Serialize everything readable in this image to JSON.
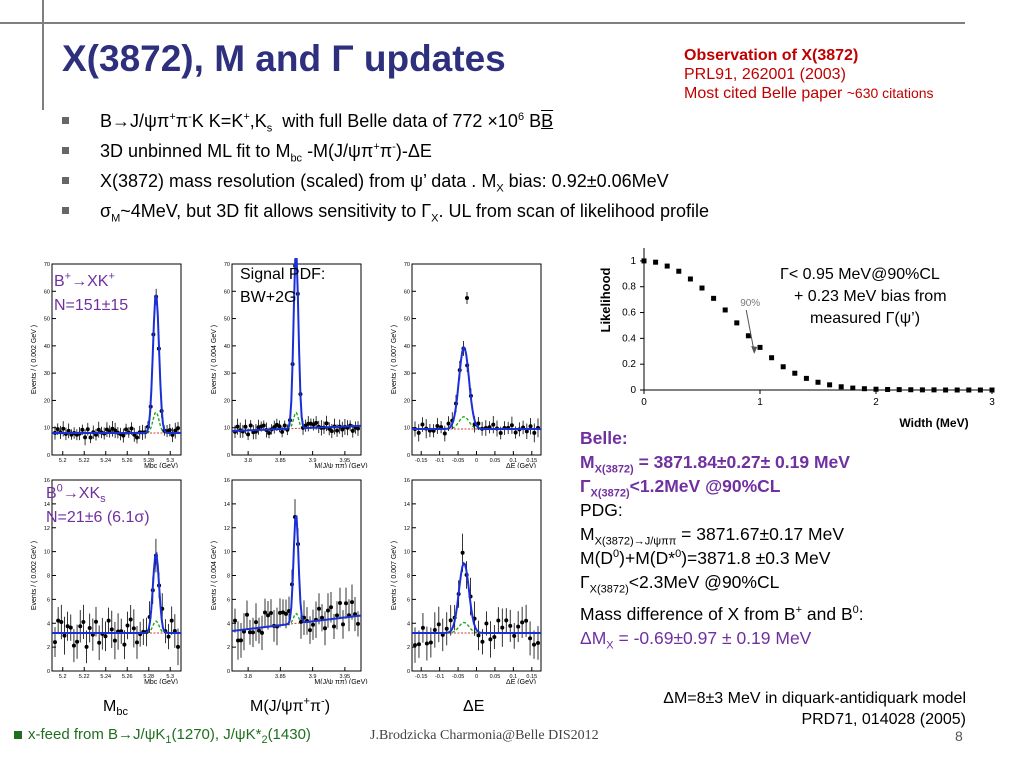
{
  "title": "X(3872), M and Γ updates",
  "observation": {
    "heading": "Observation of X(3872)",
    "ref": "PRL91, 262001 (2003)",
    "cited_main": "Most cited Belle paper ",
    "cited_small": "~630 citations"
  },
  "bullets": {
    "b1": {
      "a": "B→J/ψπ",
      "b": "+",
      "c": "π",
      "d": "-",
      "e": "K  K=K",
      "f": "+",
      "g": ",K",
      "h": "s",
      "i": "  with full Belle data of 772 ×10",
      "j": "6",
      "k": " B",
      "l": "B"
    },
    "b2": {
      "a": "3D unbinned ML fit to M",
      "b": "bc",
      "c": " -M(J/ψπ",
      "d": "+",
      "e": "π",
      "f": "-",
      "g": ")-ΔE"
    },
    "b3": {
      "a": "X(3872) mass resolution (scaled) from ψ’ data . M",
      "b": "X",
      "c": " bias: 0.92±0.06MeV"
    },
    "b4": {
      "a": "σ",
      "b": "M",
      "c": "~4MeV, but 3D fit allows sensitivity to Γ",
      "d": "X",
      "e": ". UL from scan of likelihood profile"
    }
  },
  "panels": {
    "ylab_002": "Events / ( 0.002 GeV )",
    "ylab_004": "Events / ( 0.004 GeV )",
    "ylab_007": "Events / ( 0.007 GeV )",
    "xlab_mbc": "Mbc (GeV)",
    "xlab_mjpp": "M(J/ψ ππ) (GeV)",
    "xlab_de": "ΔE (GeV)",
    "ticks_mbc": [
      "5.2",
      "5.22",
      "5.24",
      "5.26",
      "5.28",
      "5.3"
    ],
    "ticks_mj_top": [
      "3.8",
      "3.85",
      "3.9",
      "3.95"
    ],
    "ticks_mj_bot": [
      "3.8",
      "3.85",
      "3.9",
      "3.95"
    ],
    "ticks_de": [
      "-0.15",
      "-0.1",
      "-0.05",
      "0",
      "0.05",
      "0.1",
      "0.15"
    ],
    "yticks_top": [
      "0",
      "10",
      "20",
      "30",
      "40",
      "50",
      "60",
      "70"
    ],
    "yticks_bot": [
      "0",
      "2",
      "4",
      "6",
      "8",
      "10",
      "12",
      "14",
      "16"
    ]
  },
  "labels": {
    "b_plus": {
      "a": "B",
      "b": "+",
      "c": "→XK",
      "d": "+"
    },
    "n_plus": "N=151±15",
    "b_zero": {
      "a": "B",
      "b": "0",
      "c": "→XK",
      "d": "s"
    },
    "n_zero": "N=21±6 (6.1σ)",
    "signal_pdf_1": "Signal PDF:",
    "signal_pdf_2": "BW+2G"
  },
  "likelihood": {
    "ylabel": "Likelihood",
    "xlabel": "Width (MeV)",
    "marker": "90%",
    "yticks": [
      "0",
      "0.2",
      "0.4",
      "0.6",
      "0.8",
      "1"
    ],
    "xticks": [
      "0",
      "1",
      "2",
      "3"
    ]
  },
  "ul_text": {
    "l1": "Γ< 0.95 MeV@90%CL",
    "l2": "+ 0.23 MeV bias from",
    "l3": "measured Γ(ψ’)"
  },
  "results": {
    "belle": "Belle:",
    "mx": {
      "a": "M",
      "b": "X(3872)",
      "c": " = 3871.84±0.27± 0.19 MeV"
    },
    "gx": {
      "a": "Γ",
      "b": "X(3872)",
      "c": "<1.2MeV @90%CL"
    },
    "pdg": "PDG:",
    "mpdg": {
      "a": "M",
      "b": "X(3872)→J/ψππ",
      "c": " = 3871.67±0.17 MeV"
    },
    "mdd": {
      "a": "M(D",
      "b": "0",
      "c": ")+M(D*",
      "d": "0",
      "e": ")=3871.8 ±0.3 MeV"
    },
    "gpdg": {
      "a": "Γ",
      "b": "X(3872)",
      "c": "<2.3MeV @90%CL"
    },
    "massdiff": {
      "a": "Mass difference of X from B",
      "b": "+",
      "c": " and B",
      "d": "0",
      "e": ":"
    },
    "dm": {
      "a": "ΔM",
      "b": "X",
      "c": " = -0.69±0.97 ± 0.19 MeV"
    }
  },
  "diquark": {
    "l1": "ΔM=8±3 MeV in diquark-antidiquark model",
    "l2": "PRD71, 014028 (2005)"
  },
  "bottom_labels": {
    "mbc": {
      "a": "M",
      "b": "bc"
    },
    "mj": {
      "a": "M(J/ψπ",
      "b": "+",
      "c": "π",
      "d": "-",
      "e": ")"
    },
    "de": "ΔE"
  },
  "footer": {
    "a": "x-feed from B→J/ψK",
    "b": "1",
    "c": "(1270), J/ψK*",
    "d": "2",
    "e": "(1430)"
  },
  "credit": "J.Brodzicka  Charmonia@Belle   DIS2012",
  "page_number": "8",
  "chart_data": [
    {
      "type": "line",
      "x": [
        0,
        0.1,
        0.2,
        0.3,
        0.4,
        0.5,
        0.6,
        0.7,
        0.8,
        0.9,
        1.0,
        1.1,
        1.2,
        1.3,
        1.4,
        1.5,
        1.6,
        1.7,
        1.8,
        1.9,
        2.0,
        2.1,
        2.2,
        2.3,
        2.4,
        2.5,
        2.6,
        2.7,
        2.8,
        2.9,
        3.0
      ],
      "y": [
        1.0,
        0.99,
        0.96,
        0.92,
        0.86,
        0.79,
        0.71,
        0.62,
        0.52,
        0.42,
        0.33,
        0.25,
        0.18,
        0.13,
        0.09,
        0.06,
        0.04,
        0.025,
        0.015,
        0.01,
        0.006,
        0.004,
        0.003,
        0.002,
        0.001,
        0.001,
        0.0,
        0.0,
        0.0,
        0.0,
        0.0
      ],
      "xlabel": "Width (MeV)",
      "ylabel": "Likelihood",
      "xlim": [
        0,
        3
      ],
      "ylim": [
        0,
        1.1
      ],
      "annotation": "90%",
      "marker_x": 0.95
    }
  ]
}
